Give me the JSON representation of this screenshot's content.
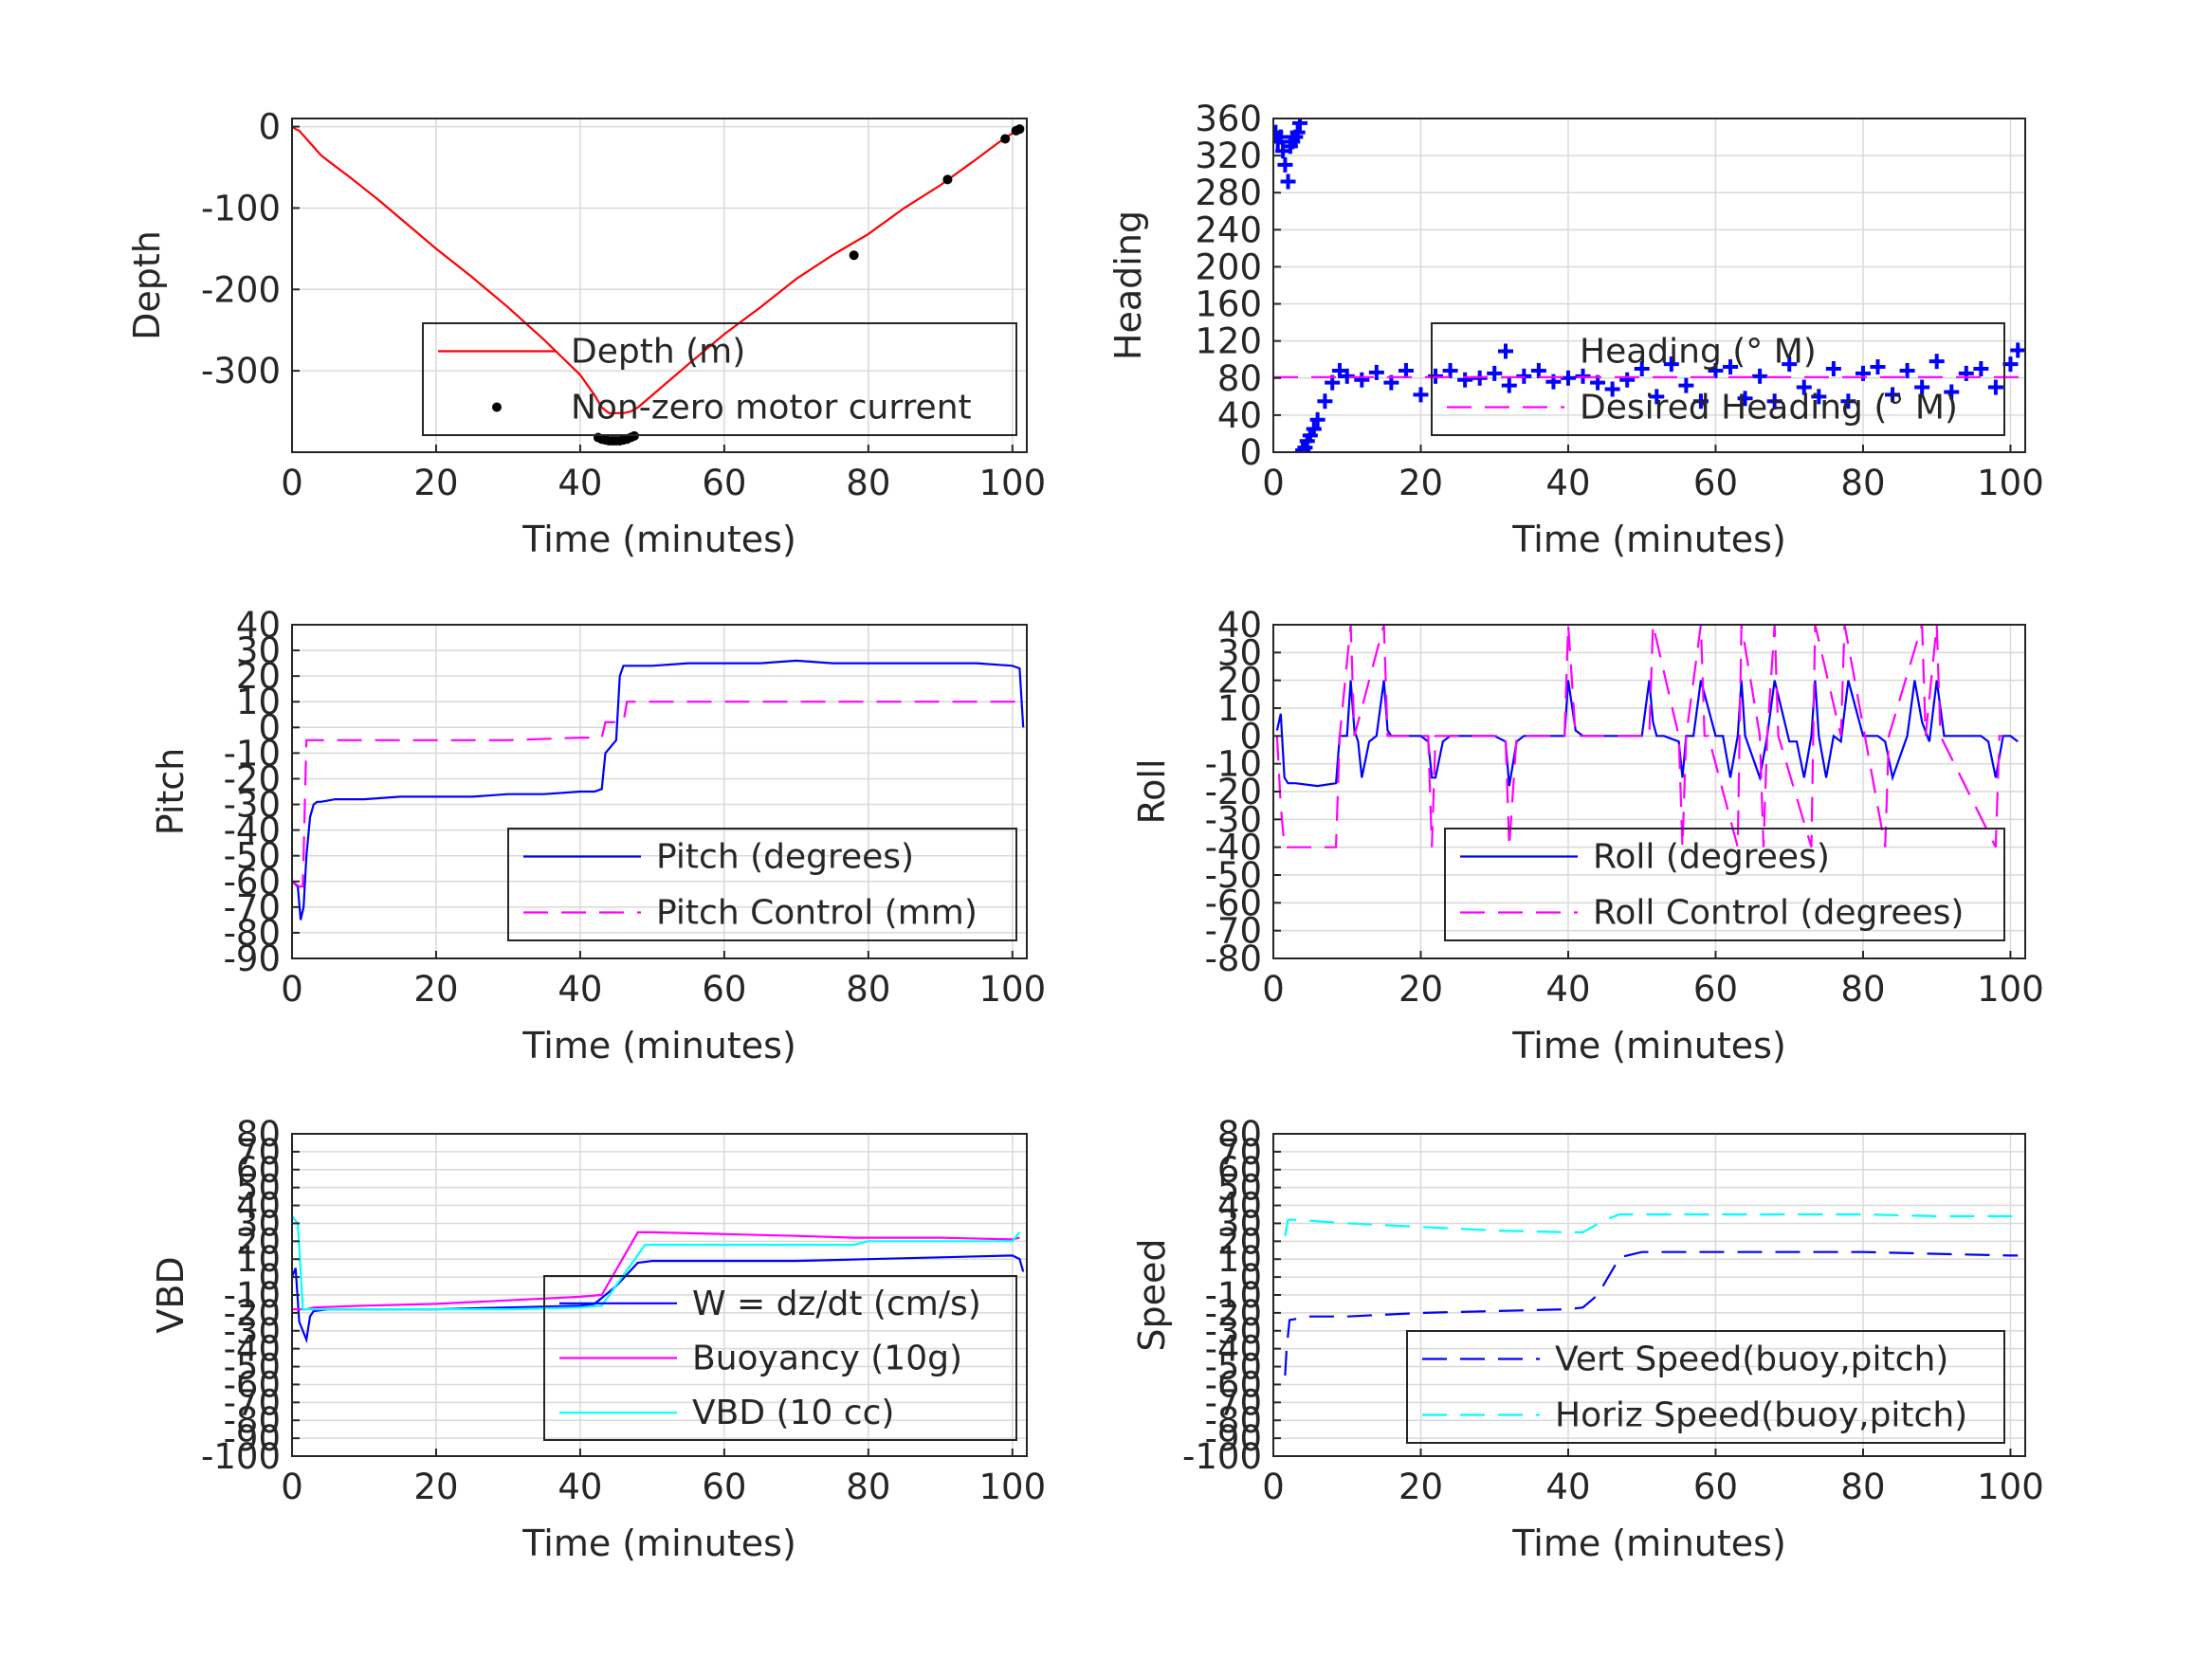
{
  "figure": {
    "background": "#ffffff",
    "axis_color": "#262626",
    "grid_color": "#d9d9d9"
  },
  "chart_data": [
    {
      "id": "depth",
      "type": "line",
      "xlabel": "Time (minutes)",
      "ylabel": "Depth",
      "xlim": [
        0,
        102
      ],
      "ylim": [
        -400,
        10
      ],
      "xticks": [
        0,
        20,
        40,
        60,
        80,
        100
      ],
      "yticks": [
        0,
        -100,
        -200,
        -300
      ],
      "legend_location": "bottom-right",
      "series": [
        {
          "name": "Depth (m)",
          "style": "solid",
          "color": "#ff0000",
          "x": [
            0,
            0.5,
            1,
            1.5,
            2,
            3,
            4,
            5,
            8,
            12,
            16,
            20,
            25,
            30,
            35,
            40,
            42,
            43,
            44,
            45,
            46,
            47,
            48,
            50,
            55,
            60,
            65,
            70,
            75,
            80,
            85,
            90,
            95,
            98,
            100,
            101
          ],
          "y": [
            0,
            -3,
            -5,
            -10,
            -15,
            -25,
            -35,
            -42,
            -62,
            -90,
            -120,
            -150,
            -185,
            -222,
            -262,
            -305,
            -330,
            -345,
            -352,
            -352,
            -352,
            -350,
            -345,
            -330,
            -292,
            -255,
            -222,
            -187,
            -158,
            -132,
            -100,
            -72,
            -40,
            -20,
            -8,
            -3
          ]
        },
        {
          "name": "Non-zero motor current",
          "style": "marker",
          "marker": "dot",
          "color": "#000000",
          "x": [
            42.5,
            43,
            43.5,
            44,
            44.5,
            45,
            45.5,
            46,
            46.5,
            47,
            47.5,
            78,
            91,
            99,
            100.5,
            101
          ],
          "y": [
            -382,
            -384,
            -385,
            -386,
            -386,
            -386,
            -386,
            -385,
            -384,
            -382,
            -380,
            -158,
            -65,
            -15,
            -5,
            -3
          ]
        }
      ]
    },
    {
      "id": "heading",
      "type": "line",
      "xlabel": "Time (minutes)",
      "ylabel": "Heading",
      "xlim": [
        0,
        102
      ],
      "ylim": [
        0,
        360
      ],
      "xticks": [
        0,
        20,
        40,
        60,
        80,
        100
      ],
      "yticks": [
        0,
        40,
        80,
        120,
        160,
        200,
        240,
        280,
        320,
        360
      ],
      "legend_location": "bottom-right",
      "series": [
        {
          "name": "Heading (° M)",
          "style": "marker",
          "marker": "plus",
          "color": "#0000ff",
          "x": [
            0.3,
            0.6,
            1,
            1.3,
            1.6,
            2,
            2.3,
            2.6,
            3,
            3.3,
            3.6,
            4,
            4.3,
            4.6,
            5,
            5.5,
            6,
            7,
            8,
            9,
            10,
            12,
            14,
            16,
            18,
            20,
            22,
            24,
            26,
            28,
            30,
            32,
            34,
            36,
            38,
            40,
            42,
            44,
            46,
            48,
            50,
            52,
            54,
            56,
            58,
            60,
            62,
            64,
            66,
            68,
            70,
            72,
            74,
            76,
            78,
            80,
            82,
            84,
            86,
            88,
            90,
            92,
            94,
            96,
            98,
            100,
            101
          ],
          "y": [
            345,
            335,
            340,
            325,
            310,
            292,
            330,
            335,
            340,
            345,
            355,
            2,
            5,
            12,
            18,
            25,
            35,
            55,
            75,
            88,
            82,
            78,
            86,
            75,
            88,
            62,
            82,
            88,
            78,
            80,
            85,
            72,
            82,
            88,
            76,
            80,
            82,
            75,
            68,
            78,
            90,
            60,
            95,
            72,
            55,
            88,
            92,
            58,
            82,
            55,
            95,
            70,
            60,
            90,
            55,
            85,
            92,
            62,
            88,
            70,
            98,
            65,
            85,
            90,
            70,
            95,
            110
          ]
        },
        {
          "name": "Desired Heading (° M)",
          "style": "dash",
          "color": "#ff00ff",
          "x": [
            0,
            102
          ],
          "y": [
            81,
            81
          ]
        }
      ]
    },
    {
      "id": "pitch",
      "type": "line",
      "xlabel": "Time (minutes)",
      "ylabel": "Pitch",
      "xlim": [
        0,
        102
      ],
      "ylim": [
        -90,
        40
      ],
      "xticks": [
        0,
        20,
        40,
        60,
        80,
        100
      ],
      "yticks": [
        40,
        30,
        20,
        10,
        0,
        -10,
        -20,
        -30,
        -40,
        -50,
        -60,
        -70,
        -80,
        -90
      ],
      "legend_location": "bottom-right",
      "series": [
        {
          "name": "Pitch (degrees)",
          "style": "solid",
          "color": "#0000ff",
          "x": [
            0,
            0.8,
            1.2,
            1.6,
            2,
            2.5,
            3,
            3.5,
            4,
            6,
            10,
            15,
            20,
            25,
            30,
            35,
            40,
            42,
            43,
            43.5,
            45,
            45.5,
            46,
            50,
            55,
            60,
            65,
            70,
            75,
            80,
            85,
            90,
            95,
            100,
            101,
            101.5
          ],
          "y": [
            -60,
            -62,
            -75,
            -70,
            -50,
            -35,
            -30,
            -29,
            -29,
            -28,
            -28,
            -27,
            -27,
            -27,
            -26,
            -26,
            -25,
            -25,
            -24,
            -10,
            -5,
            20,
            24,
            24,
            25,
            25,
            25,
            26,
            25,
            25,
            25,
            25,
            25,
            24,
            23,
            0
          ]
        },
        {
          "name": "Pitch Control (mm)",
          "style": "dash",
          "color": "#ff00ff",
          "x": [
            0,
            1,
            1.5,
            2,
            5,
            10,
            20,
            30,
            40,
            43,
            43.5,
            45,
            46,
            46.5,
            50,
            60,
            70,
            80,
            90,
            100,
            101
          ],
          "y": [
            -60,
            -62,
            -62,
            -5,
            -5,
            -5,
            -5,
            -5,
            -4,
            -4,
            2,
            2,
            2,
            10,
            10,
            10,
            10,
            10,
            10,
            10,
            10
          ]
        }
      ]
    },
    {
      "id": "roll",
      "type": "line",
      "xlabel": "Time (minutes)",
      "ylabel": "Roll",
      "xlim": [
        0,
        102
      ],
      "ylim": [
        -80,
        40
      ],
      "xticks": [
        0,
        20,
        40,
        60,
        80,
        100
      ],
      "yticks": [
        40,
        30,
        20,
        10,
        0,
        -10,
        -20,
        -30,
        -40,
        -50,
        -60,
        -70,
        -80
      ],
      "legend_location": "bottom-right",
      "series": [
        {
          "name": "Roll (degrees)",
          "style": "solid",
          "color": "#0000ff",
          "x": [
            0.5,
            1,
            1.5,
            2,
            3,
            6,
            8.5,
            9,
            10,
            10.5,
            11,
            11.5,
            12,
            13,
            14,
            15,
            15.5,
            16,
            17,
            20,
            21,
            21.5,
            22,
            23,
            24,
            25,
            30,
            31.5,
            32,
            33,
            34,
            38,
            39.5,
            40,
            41,
            42,
            50,
            51,
            51.5,
            52,
            53,
            55,
            55.5,
            56,
            57,
            58,
            60,
            61,
            62,
            63,
            63.5,
            64,
            66,
            67,
            68,
            70,
            71,
            72,
            73,
            73.5,
            74,
            75,
            76,
            77,
            78,
            80,
            81,
            82,
            83,
            84,
            86,
            87,
            88,
            89,
            90,
            91,
            92,
            93,
            95,
            96,
            97,
            98,
            99,
            100,
            101
          ],
          "y": [
            2,
            8,
            -15,
            -17,
            -17,
            -18,
            -17,
            0,
            0,
            20,
            2,
            -2,
            -15,
            -2,
            0,
            20,
            2,
            0,
            0,
            0,
            -2,
            -15,
            -15,
            -2,
            0,
            0,
            0,
            -2,
            -18,
            -2,
            0,
            0,
            0,
            20,
            2,
            0,
            0,
            20,
            5,
            0,
            0,
            -2,
            -15,
            0,
            0,
            20,
            0,
            0,
            -15,
            0,
            20,
            0,
            -15,
            0,
            20,
            -2,
            -2,
            -15,
            0,
            20,
            0,
            -15,
            0,
            -2,
            20,
            0,
            0,
            0,
            -2,
            -15,
            0,
            20,
            5,
            -2,
            20,
            0,
            0,
            0,
            0,
            0,
            -2,
            -15,
            0,
            0,
            -2
          ]
        },
        {
          "name": "Roll Control (degrees)",
          "style": "dash",
          "color": "#ff00ff",
          "x": [
            0.5,
            1,
            1.5,
            2,
            8.5,
            9,
            10.5,
            11,
            15,
            15.5,
            16,
            21,
            21.5,
            22,
            31.5,
            32,
            33,
            39.5,
            40,
            41,
            51,
            51.5,
            55,
            55.5,
            56,
            58,
            58.5,
            59,
            63,
            63.5,
            66,
            66.5,
            67,
            68,
            68.5,
            73,
            73.5,
            77,
            77.5,
            83,
            83.5,
            88,
            88.5,
            90,
            90.5,
            98,
            98.5,
            99
          ],
          "y": [
            0,
            -25,
            -40,
            -40,
            -40,
            0,
            40,
            0,
            40,
            0,
            0,
            0,
            -40,
            0,
            0,
            -40,
            0,
            0,
            40,
            0,
            0,
            40,
            0,
            -40,
            0,
            40,
            0,
            0,
            -40,
            40,
            0,
            -40,
            0,
            40,
            0,
            -40,
            40,
            0,
            40,
            -40,
            0,
            40,
            0,
            40,
            0,
            -40,
            0,
            0
          ]
        }
      ]
    },
    {
      "id": "vbd",
      "type": "line",
      "xlabel": "Time (minutes)",
      "ylabel": "VBD",
      "xlim": [
        0,
        102
      ],
      "ylim": [
        -100,
        80
      ],
      "xticks": [
        0,
        20,
        40,
        60,
        80,
        100
      ],
      "yticks": [
        80,
        70,
        60,
        50,
        40,
        30,
        20,
        10,
        0,
        -10,
        -20,
        -30,
        -40,
        -50,
        -60,
        -70,
        -80,
        -90,
        -100
      ],
      "tick_labels": [
        "80",
        "70",
        "60",
        "50",
        "40",
        "30",
        "20",
        "10",
        "0",
        "-10",
        "-20",
        "-30",
        "-40",
        "-50",
        "-60",
        "-70",
        "-80",
        "-90",
        "-100"
      ],
      "legend_location": "bottom-right",
      "series": [
        {
          "name": "W = dz/dt (cm/s)",
          "style": "solid",
          "color": "#0000ff",
          "x": [
            0,
            0.5,
            1,
            1.5,
            2,
            2.5,
            3,
            5,
            10,
            20,
            30,
            40,
            42,
            45,
            48,
            50,
            60,
            70,
            80,
            90,
            100,
            101,
            101.5
          ],
          "y": [
            0,
            5,
            -25,
            -30,
            -35,
            -22,
            -19,
            -18,
            -18,
            -18,
            -17,
            -16,
            -15,
            -5,
            8,
            9,
            9,
            9,
            10,
            11,
            12,
            10,
            3
          ]
        },
        {
          "name": "Buoyancy (10g)",
          "style": "solid",
          "color": "#ff00ff",
          "x": [
            0,
            1.5,
            2,
            3,
            10,
            20,
            30,
            40,
            43,
            48,
            50,
            60,
            70,
            78,
            80,
            90,
            100,
            101
          ],
          "y": [
            -18,
            -18,
            -18,
            -17,
            -16,
            -15,
            -13,
            -11,
            -10,
            25,
            25,
            24,
            23,
            22,
            22,
            22,
            21,
            22
          ]
        },
        {
          "name": "VBD (10 cc)",
          "style": "solid",
          "color": "#00ffff",
          "x": [
            0,
            0.8,
            1.5,
            2,
            3,
            10,
            20,
            30,
            40,
            43,
            49,
            50,
            60,
            70,
            78,
            80,
            90,
            100,
            101
          ],
          "y": [
            34,
            30,
            -18,
            -18,
            -18,
            -18,
            -18,
            -18,
            -17,
            -16,
            18,
            18,
            18,
            18,
            18,
            20,
            20,
            20,
            25
          ]
        }
      ]
    },
    {
      "id": "speed",
      "type": "line",
      "xlabel": "Time (minutes)",
      "ylabel": "Speed",
      "xlim": [
        0,
        102
      ],
      "ylim": [
        -100,
        80
      ],
      "xticks": [
        0,
        20,
        40,
        60,
        80,
        100
      ],
      "yticks": [
        80,
        70,
        60,
        50,
        40,
        30,
        20,
        10,
        0,
        -10,
        -20,
        -30,
        -40,
        -50,
        -60,
        -70,
        -80,
        -90,
        -100
      ],
      "tick_labels": [
        "80",
        "70",
        "60",
        "50",
        "40",
        "30",
        "20",
        "10",
        "0",
        "-10",
        "-20",
        "-30",
        "-40",
        "-50",
        "-60",
        "-70",
        "-80",
        "-90",
        "-100"
      ],
      "legend_location": "bottom-right",
      "series": [
        {
          "name": "Vert Speed(buoy,pitch)",
          "style": "dash",
          "color": "#0000ff",
          "x": [
            1.6,
            1.8,
            2.2,
            5,
            10,
            20,
            30,
            40,
            42,
            44,
            47,
            50,
            60,
            70,
            80,
            90,
            100,
            101
          ],
          "y": [
            -55,
            -40,
            -24,
            -22,
            -22,
            -20,
            -19,
            -18,
            -17,
            -10,
            11,
            14,
            14,
            14,
            14,
            13,
            12,
            12
          ]
        },
        {
          "name": "Horiz Speed(buoy,pitch)",
          "style": "dash",
          "color": "#00ffff",
          "x": [
            1.6,
            2,
            3,
            10,
            20,
            30,
            40,
            42,
            45,
            47,
            50,
            60,
            70,
            80,
            90,
            100,
            101
          ],
          "y": [
            23,
            32,
            32,
            30,
            28,
            26,
            25,
            25,
            32,
            35,
            35,
            35,
            35,
            35,
            34,
            34,
            33
          ]
        }
      ]
    }
  ]
}
